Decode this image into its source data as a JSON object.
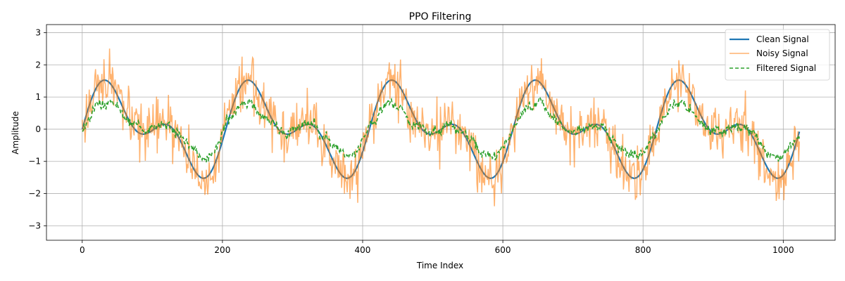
{
  "chart_data": {
    "type": "line",
    "title": "PPO Filtering",
    "xlabel": "Time Index",
    "ylabel": "Amplitude",
    "xlim": [
      -51,
      1074
    ],
    "ylim": [
      -3.45,
      3.25
    ],
    "xticks": [
      0,
      200,
      400,
      600,
      800,
      1000
    ],
    "yticks": [
      -3,
      -2,
      -1,
      0,
      1,
      2,
      3
    ],
    "x_range": [
      0,
      1023
    ],
    "grid": true,
    "legend_position": "upper-right",
    "series": [
      {
        "name": "Clean Signal",
        "color": "#1f77b4",
        "style": "solid",
        "description": "y = sin(2*pi*x/204.8) + sin(2*pi*x/102.4)*0.75-like composite; peaks ~1.75 at x≈32, 236, 441, 646, 851; troughs ~-1.75 at x≈172, 377, 582, 786, 991",
        "points": [
          [
            0,
            0
          ],
          [
            16,
            1.2
          ],
          [
            32,
            1.75
          ],
          [
            48,
            1.4
          ],
          [
            64,
            0.45
          ],
          [
            80,
            -0.35
          ],
          [
            96,
            -0.25
          ],
          [
            112,
            0.2
          ],
          [
            122,
            0.35
          ],
          [
            140,
            -0.3
          ],
          [
            156,
            -1.2
          ],
          [
            172,
            -1.75
          ],
          [
            188,
            -1.2
          ],
          [
            204,
            0.0
          ],
          [
            220,
            1.2
          ],
          [
            236,
            1.75
          ],
          [
            252,
            1.4
          ],
          [
            268,
            0.45
          ],
          [
            284,
            -0.35
          ],
          [
            300,
            -0.25
          ],
          [
            316,
            0.2
          ],
          [
            326,
            0.35
          ],
          [
            344,
            -0.3
          ],
          [
            360,
            -1.2
          ],
          [
            377,
            -1.75
          ],
          [
            393,
            -1.2
          ],
          [
            409,
            0.0
          ],
          [
            425,
            1.2
          ],
          [
            441,
            1.75
          ],
          [
            457,
            1.4
          ],
          [
            473,
            0.45
          ],
          [
            489,
            -0.35
          ],
          [
            505,
            -0.25
          ],
          [
            521,
            0.2
          ],
          [
            531,
            0.35
          ],
          [
            549,
            -0.3
          ],
          [
            565,
            -1.2
          ],
          [
            582,
            -1.75
          ],
          [
            598,
            -1.2
          ],
          [
            614,
            0.0
          ],
          [
            630,
            1.2
          ],
          [
            646,
            1.75
          ],
          [
            662,
            1.4
          ],
          [
            678,
            0.45
          ],
          [
            694,
            -0.35
          ],
          [
            710,
            -0.25
          ],
          [
            726,
            0.2
          ],
          [
            736,
            0.35
          ],
          [
            754,
            -0.3
          ],
          [
            770,
            -1.2
          ],
          [
            786,
            -1.75
          ],
          [
            802,
            -1.2
          ],
          [
            818,
            0.0
          ],
          [
            835,
            1.2
          ],
          [
            851,
            1.75
          ],
          [
            867,
            1.4
          ],
          [
            883,
            0.45
          ],
          [
            899,
            -0.35
          ],
          [
            915,
            -0.25
          ],
          [
            931,
            0.2
          ],
          [
            941,
            0.35
          ],
          [
            959,
            -0.3
          ],
          [
            975,
            -1.2
          ],
          [
            991,
            -1.75
          ],
          [
            1007,
            -1.2
          ],
          [
            1023,
            0.0
          ]
        ]
      },
      {
        "name": "Noisy Signal",
        "color": "#ff7f0e",
        "style": "solid",
        "opacity": 0.6,
        "description": "clean signal plus Gaussian noise (sd ≈ 0.4); range about -3.1 to 2.95"
      },
      {
        "name": "Filtered Signal",
        "color": "#2ca02c",
        "style": "dashed",
        "description": "smoothed, attenuated version of the noisy signal (~55% amplitude); range about -1.25 to 1.3"
      }
    ]
  }
}
